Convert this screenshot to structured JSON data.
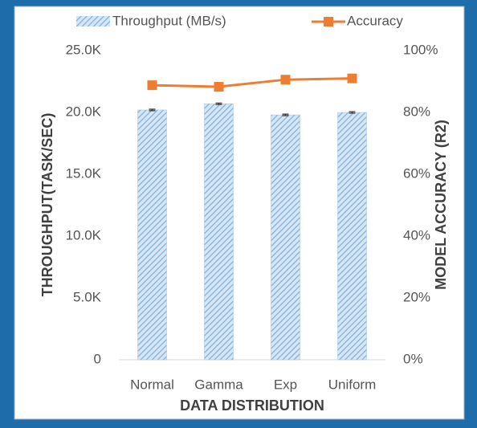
{
  "chart_data": {
    "type": "bar",
    "categories": [
      "Normal",
      "Gamma",
      "Exp",
      "Uniform"
    ],
    "series": [
      {
        "name": "Throughput (MB/s)",
        "type": "bar",
        "color": "#9dc3e6",
        "values": [
          20200,
          20700,
          19800,
          20000
        ],
        "errors": [
          60,
          60,
          60,
          60
        ]
      },
      {
        "name": "Accuracy",
        "type": "line",
        "axis": "y2",
        "color": "#ed7d31",
        "values": [
          88.8,
          88.3,
          90.6,
          91.0
        ]
      }
    ],
    "ylabel": "THROUGHPUT(TASK/SEC)",
    "y2label": "MODEL ACCURACY (R2)",
    "xlabel": "DATA DISTRIBUTION",
    "ylim": [
      0,
      25000
    ],
    "yticks": [
      0,
      {
        "value": 5000,
        "label": "5.0K"
      },
      {
        "value": 10000,
        "label": "10.0K"
      },
      {
        "value": 15000,
        "label": "15.0K"
      },
      {
        "value": 20000,
        "label": "20.0K"
      },
      {
        "value": 25000,
        "label": "25.0K"
      }
    ],
    "y2lim": [
      0,
      100
    ],
    "y2ticks": [
      {
        "value": 0,
        "label": "0%"
      },
      {
        "value": 20,
        "label": "20%"
      },
      {
        "value": 40,
        "label": "40%"
      },
      {
        "value": 60,
        "label": "60%"
      },
      {
        "value": 80,
        "label": "80%"
      },
      {
        "value": 100,
        "label": "100%"
      }
    ],
    "legend": "top"
  }
}
